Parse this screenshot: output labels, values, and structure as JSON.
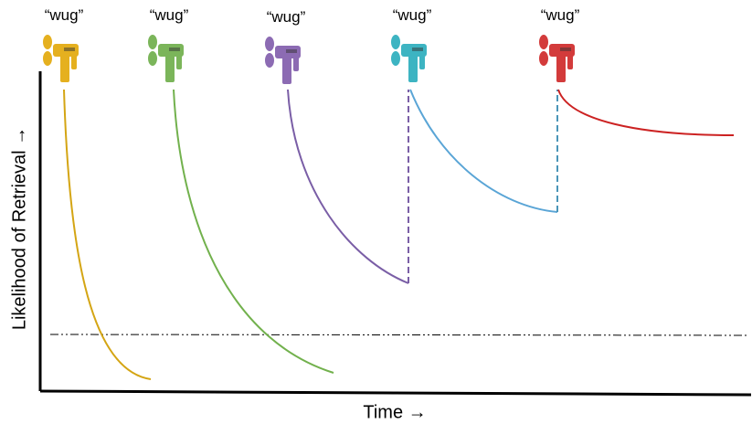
{
  "labels": [
    "“wug”",
    "“wug”",
    "“wug”",
    "“wug”",
    "“wug”"
  ],
  "x_axis_label": "Time →",
  "y_axis_label": "Likelihood of Retrieval →"
}
